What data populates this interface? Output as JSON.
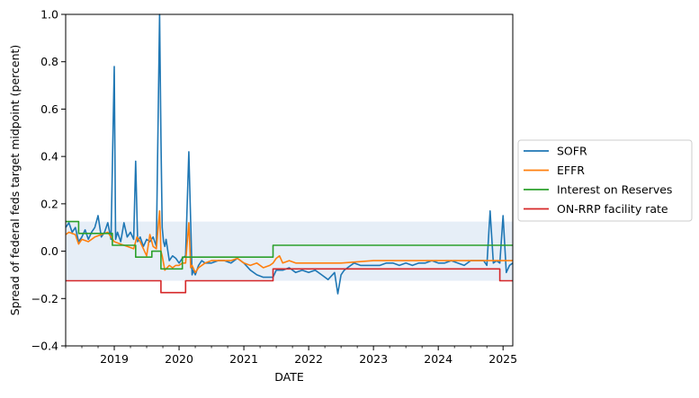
{
  "chart_data": {
    "type": "line",
    "title": "",
    "xlabel": "DATE",
    "ylabel": "Spread of federal feds target midpoint (percent)",
    "xlim": [
      2018.25,
      2025.15
    ],
    "ylim": [
      -0.4,
      1.0
    ],
    "x_ticks": [
      "2019",
      "2020",
      "2021",
      "2022",
      "2023",
      "2024",
      "2025"
    ],
    "x_tick_values": [
      2019,
      2020,
      2021,
      2022,
      2023,
      2024,
      2025
    ],
    "y_ticks": [
      "1.0",
      "0.8",
      "0.6",
      "0.4",
      "0.2",
      "0.0",
      "−0.2",
      "−0.4"
    ],
    "y_tick_values": [
      1.0,
      0.8,
      0.6,
      0.4,
      0.2,
      0.0,
      -0.2,
      -0.4
    ],
    "shaded_band": {
      "y_range": [
        -0.125,
        0.125
      ],
      "color": "#e6eef7"
    },
    "grid": false,
    "legend_position": "outside-right",
    "series": [
      {
        "name": "SOFR",
        "color": "#1f77b4",
        "x": [
          2018.25,
          2018.3,
          2018.35,
          2018.4,
          2018.45,
          2018.5,
          2018.55,
          2018.6,
          2018.65,
          2018.7,
          2018.75,
          2018.8,
          2018.85,
          2018.9,
          2018.95,
          2019.0,
          2019.02,
          2019.05,
          2019.1,
          2019.15,
          2019.2,
          2019.25,
          2019.3,
          2019.33,
          2019.36,
          2019.4,
          2019.45,
          2019.5,
          2019.55,
          2019.6,
          2019.65,
          2019.7,
          2019.72,
          2019.74,
          2019.76,
          2019.78,
          2019.8,
          2019.85,
          2019.9,
          2019.95,
          2020.0,
          2020.05,
          2020.1,
          2020.15,
          2020.2,
          2020.22,
          2020.25,
          2020.3,
          2020.35,
          2020.4,
          2020.5,
          2020.6,
          2020.7,
          2020.8,
          2020.9,
          2021.0,
          2021.1,
          2021.2,
          2021.3,
          2021.4,
          2021.45,
          2021.5,
          2021.6,
          2021.7,
          2021.8,
          2021.9,
          2022.0,
          2022.1,
          2022.2,
          2022.3,
          2022.4,
          2022.45,
          2022.5,
          2022.55,
          2022.6,
          2022.7,
          2022.8,
          2022.9,
          2023.0,
          2023.1,
          2023.2,
          2023.3,
          2023.4,
          2023.5,
          2023.6,
          2023.7,
          2023.8,
          2023.9,
          2024.0,
          2024.1,
          2024.2,
          2024.3,
          2024.4,
          2024.5,
          2024.6,
          2024.7,
          2024.75,
          2024.8,
          2024.85,
          2024.9,
          2024.95,
          2025.0,
          2025.05,
          2025.1,
          2025.15
        ],
        "values": [
          0.1,
          0.12,
          0.08,
          0.1,
          0.04,
          0.06,
          0.09,
          0.05,
          0.08,
          0.1,
          0.15,
          0.06,
          0.08,
          0.12,
          0.05,
          0.78,
          0.05,
          0.08,
          0.04,
          0.12,
          0.06,
          0.08,
          0.05,
          0.38,
          0.04,
          0.06,
          0.02,
          0.05,
          0.04,
          0.06,
          0.02,
          1.0,
          0.48,
          0.1,
          0.04,
          0.02,
          0.05,
          -0.04,
          -0.02,
          -0.03,
          -0.05,
          -0.03,
          -0.02,
          0.42,
          -0.1,
          -0.08,
          -0.1,
          -0.06,
          -0.04,
          -0.05,
          -0.05,
          -0.04,
          -0.04,
          -0.05,
          -0.03,
          -0.05,
          -0.08,
          -0.1,
          -0.11,
          -0.11,
          -0.11,
          -0.08,
          -0.08,
          -0.07,
          -0.09,
          -0.08,
          -0.09,
          -0.08,
          -0.1,
          -0.12,
          -0.09,
          -0.18,
          -0.1,
          -0.08,
          -0.07,
          -0.05,
          -0.06,
          -0.06,
          -0.06,
          -0.06,
          -0.05,
          -0.05,
          -0.06,
          -0.05,
          -0.06,
          -0.05,
          -0.05,
          -0.04,
          -0.05,
          -0.05,
          -0.04,
          -0.05,
          -0.06,
          -0.04,
          -0.04,
          -0.04,
          -0.06,
          0.17,
          -0.05,
          -0.04,
          -0.05,
          0.15,
          -0.09,
          -0.06,
          -0.05
        ]
      },
      {
        "name": "EFFR",
        "color": "#ff7f0e",
        "x": [
          2018.25,
          2018.3,
          2018.4,
          2018.45,
          2018.5,
          2018.6,
          2018.7,
          2018.8,
          2018.9,
          2019.0,
          2019.1,
          2019.2,
          2019.3,
          2019.35,
          2019.4,
          2019.5,
          2019.55,
          2019.6,
          2019.65,
          2019.7,
          2019.72,
          2019.74,
          2019.78,
          2019.85,
          2019.9,
          2019.95,
          2020.0,
          2020.05,
          2020.1,
          2020.15,
          2020.18,
          2020.2,
          2020.25,
          2020.3,
          2020.4,
          2020.5,
          2020.6,
          2020.7,
          2020.8,
          2020.9,
          2021.0,
          2021.1,
          2021.2,
          2021.3,
          2021.4,
          2021.45,
          2021.5,
          2021.55,
          2021.6,
          2021.7,
          2021.8,
          2022.0,
          2022.5,
          2023.0,
          2023.5,
          2024.0,
          2024.5,
          2024.75,
          2024.95,
          2025.15
        ],
        "values": [
          0.07,
          0.08,
          0.07,
          0.03,
          0.05,
          0.04,
          0.06,
          0.07,
          0.08,
          0.04,
          0.03,
          0.02,
          0.01,
          0.06,
          0.04,
          -0.02,
          0.07,
          0.02,
          0.01,
          0.17,
          0.0,
          -0.02,
          -0.08,
          -0.06,
          -0.07,
          -0.06,
          -0.06,
          -0.05,
          -0.05,
          0.12,
          -0.07,
          -0.06,
          -0.09,
          -0.07,
          -0.05,
          -0.04,
          -0.04,
          -0.04,
          -0.04,
          -0.03,
          -0.05,
          -0.06,
          -0.05,
          -0.07,
          -0.06,
          -0.05,
          -0.03,
          -0.02,
          -0.05,
          -0.04,
          -0.05,
          -0.05,
          -0.05,
          -0.04,
          -0.04,
          -0.04,
          -0.04,
          -0.04,
          -0.04,
          -0.04
        ]
      },
      {
        "name": "Interest on Reserves",
        "color": "#2ca02c",
        "step": true,
        "x": [
          2018.25,
          2018.45,
          2018.97,
          2019.33,
          2019.58,
          2019.72,
          2019.9,
          2020.05,
          2020.16,
          2020.2,
          2021.45,
          2025.15
        ],
        "values": [
          0.125,
          0.075,
          0.025,
          -0.025,
          0.0,
          -0.075,
          -0.075,
          -0.025,
          -0.025,
          -0.025,
          0.025,
          0.025
        ]
      },
      {
        "name": "ON-RRP facility rate",
        "color": "#d62728",
        "step": true,
        "x": [
          2018.25,
          2019.72,
          2020.1,
          2021.45,
          2024.95,
          2025.15
        ],
        "values": [
          -0.125,
          -0.175,
          -0.125,
          -0.075,
          -0.125,
          -0.125
        ]
      }
    ]
  }
}
